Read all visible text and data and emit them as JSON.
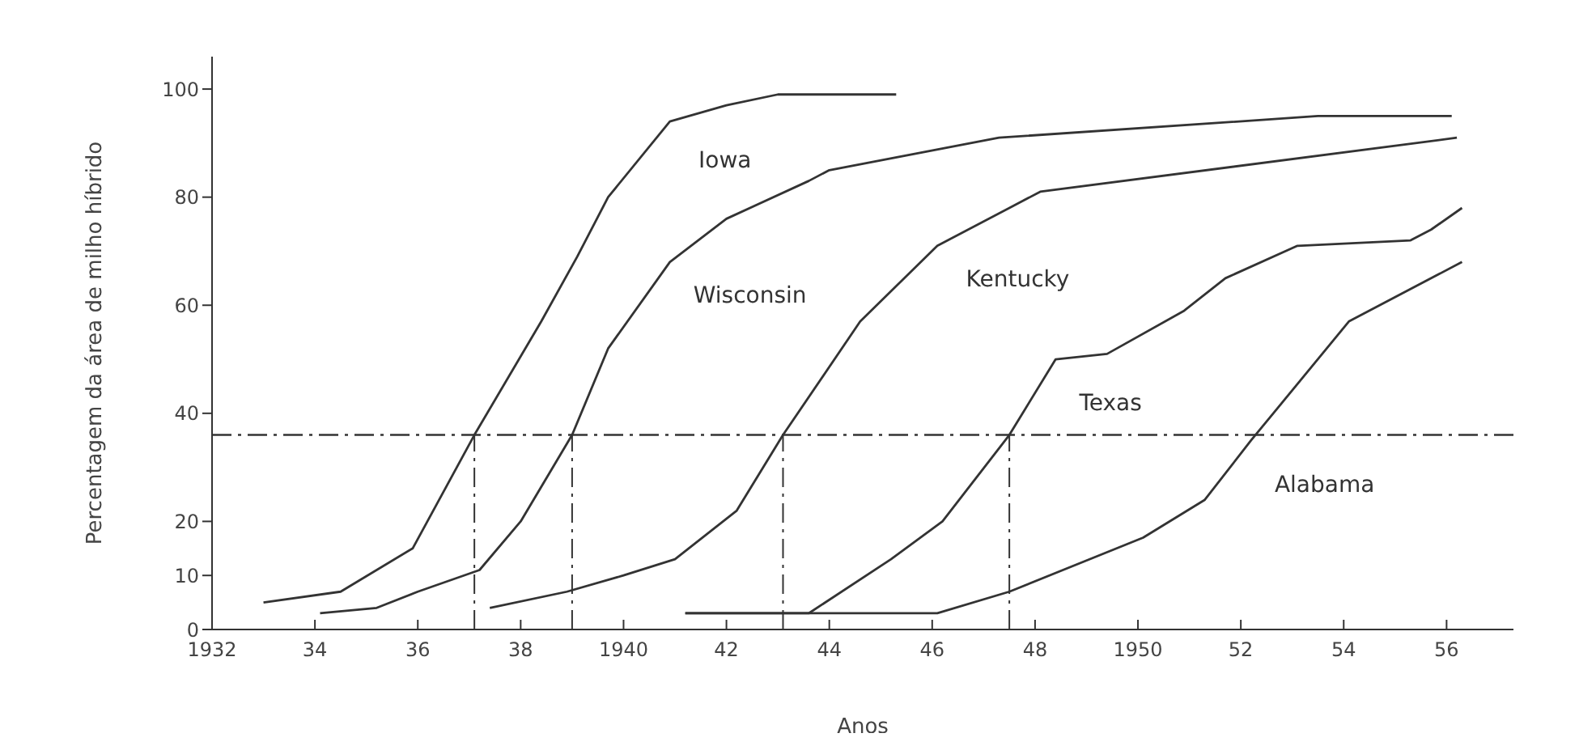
{
  "chart_data": {
    "type": "line",
    "xlabel": "Anos",
    "ylabel": "Percentagem da área de milho híbrido",
    "xlim": [
      1932,
      1957.3
    ],
    "ylim": [
      0,
      106
    ],
    "xticks": [
      1932,
      {
        "value": 1934,
        "label": "34"
      },
      {
        "value": 1936,
        "label": "36"
      },
      {
        "value": 1938,
        "label": "38"
      },
      1940,
      {
        "value": 1942,
        "label": "42"
      },
      {
        "value": 1944,
        "label": "44"
      },
      {
        "value": 1946,
        "label": "46"
      },
      {
        "value": 1948,
        "label": "48"
      },
      1950,
      {
        "value": 1952,
        "label": "52"
      },
      {
        "value": 1954,
        "label": "54"
      },
      {
        "value": 1956,
        "label": "56"
      }
    ],
    "yticks": [
      0,
      10,
      20,
      40,
      60,
      80,
      100
    ],
    "marker": "none",
    "line_style": "solid",
    "series": [
      {
        "name": "Iowa",
        "color": "#333333",
        "x": [
          1933,
          1934.5,
          1935.9,
          1937.1,
          1938.4,
          1939.1,
          1939.7,
          1940.9,
          1942,
          1943,
          1945.3
        ],
        "values": [
          5,
          7,
          15,
          36,
          57,
          69,
          80,
          94,
          97,
          99,
          99
        ]
      },
      {
        "name": "Wisconsin",
        "color": "#333333",
        "x": [
          1934.1,
          1935.2,
          1936,
          1937.2,
          1938,
          1939,
          1939.7,
          1940.9,
          1942,
          1943.6,
          1944,
          1947.3,
          1953.5,
          1956.1
        ],
        "values": [
          3,
          4,
          7,
          11,
          20,
          36,
          52,
          68,
          76,
          83,
          85,
          91,
          95,
          95
        ]
      },
      {
        "name": "Kentucky",
        "color": "#333333",
        "x": [
          1937.4,
          1938.9,
          1940,
          1941,
          1942.2,
          1943.1,
          1944.6,
          1946.1,
          1948.1,
          1956.2
        ],
        "values": [
          4,
          7,
          10,
          13,
          22,
          36,
          57,
          71,
          81,
          91
        ]
      },
      {
        "name": "Texas",
        "color": "#333333",
        "x": [
          1941.2,
          1943.6,
          1945.2,
          1946.2,
          1947.5,
          1948.4,
          1949.4,
          1950.9,
          1951.7,
          1953.1,
          1955.3,
          1955.7,
          1956.3
        ],
        "values": [
          3,
          3,
          13,
          20,
          36,
          50,
          51,
          59,
          65,
          71,
          72,
          74,
          78
        ]
      },
      {
        "name": "Alabama",
        "color": "#333333",
        "x": [
          1941.2,
          1946.1,
          1947.5,
          1950.1,
          1951.3,
          1952.2,
          1954.1,
          1956.3
        ],
        "values": [
          3,
          3,
          7,
          17,
          24,
          35,
          57,
          68
        ]
      }
    ],
    "ref_lines": [
      {
        "axis": "y",
        "value": 36,
        "line_style": "dashed",
        "color": "#333333"
      },
      {
        "axis": "x",
        "value": 1937.1,
        "line_style": "dashed",
        "color": "#333333"
      },
      {
        "axis": "x",
        "value": 1939,
        "line_style": "dashed",
        "color": "#333333"
      },
      {
        "axis": "x",
        "value": 1943.1,
        "line_style": "dashed",
        "color": "#333333"
      },
      {
        "axis": "x",
        "value": 1947.5,
        "line_style": "dashed",
        "color": "#333333"
      }
    ]
  }
}
